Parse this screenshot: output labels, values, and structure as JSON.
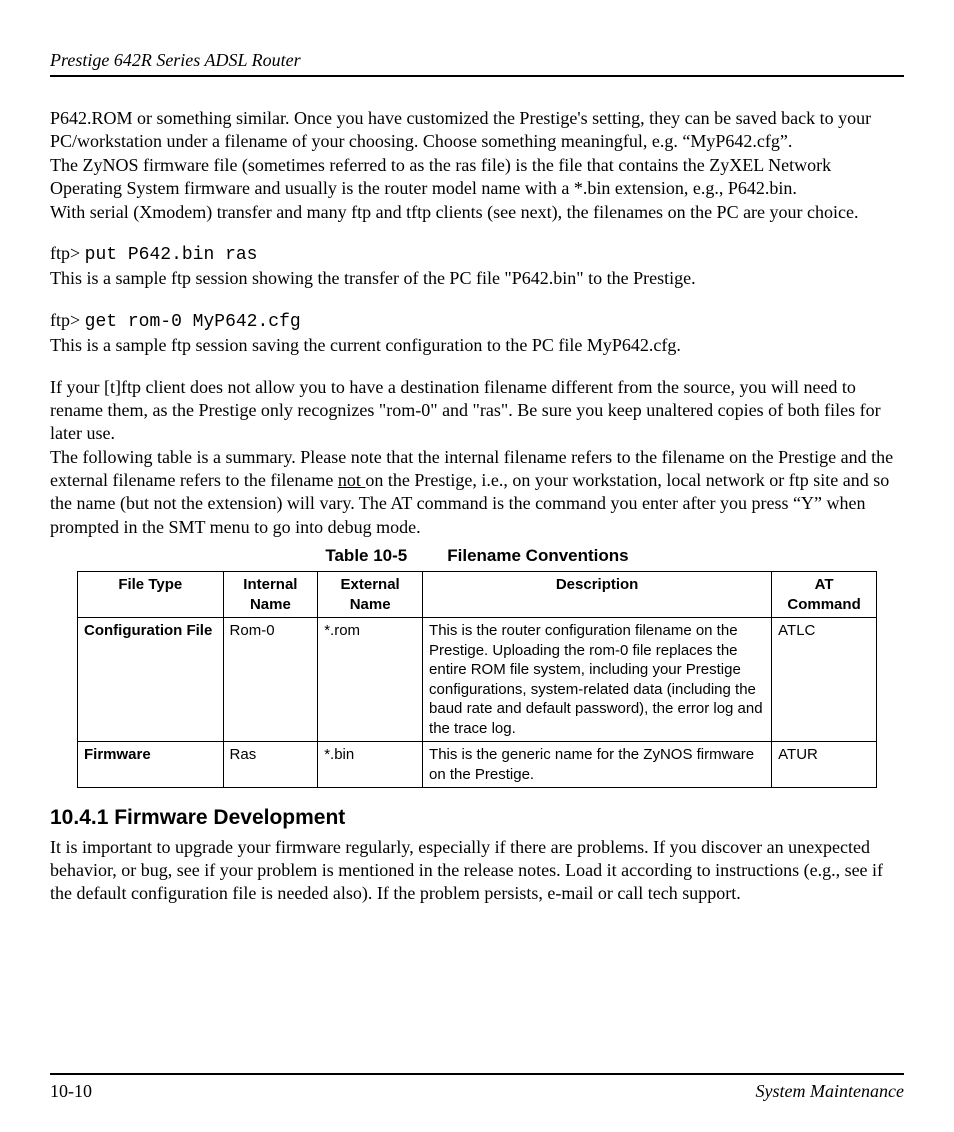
{
  "header": {
    "title": "Prestige 642R Series ADSL Router"
  },
  "para": {
    "p1a": "P642.ROM or something similar. Once you have customized the Prestige's setting, they can be saved back to your PC/workstation under a filename of your choosing. Choose something meaningful, e.g. “MyP642.cfg”.",
    "p1b": "The ZyNOS firmware file (sometimes referred to as the ras file) is the file that contains the ZyXEL Network Operating System firmware and usually is the router model name with a *.bin extension, e.g., P642.bin.",
    "p1c": "With serial (Xmodem) transfer and many ftp and tftp clients (see next), the filenames on the PC are your choice.",
    "ftp1_prompt": "ftp> ",
    "ftp1_cmd": "put P642.bin ras",
    "ftp1_desc": "This is a sample ftp session showing the transfer of the PC file \"P642.bin\" to the Prestige.",
    "ftp2_prompt": "ftp> ",
    "ftp2_cmd": "get rom-0 MyP642.cfg",
    "ftp2_desc": "This is a sample ftp session saving the current configuration to the PC file MyP642.cfg.",
    "p2": "If your [t]ftp client does not allow you to have a destination filename different from the source, you will need to rename them, as the Prestige only recognizes \"rom-0\" and \"ras\". Be sure you keep unaltered copies of both files for later use.",
    "p3a": "The following table is a summary. Please note that the internal filename refers to the filename on the Prestige and the external filename refers to the filename ",
    "p3_not": "not ",
    "p3b": "on the Prestige, i.e., on your workstation, local network or ftp site and so the name (but not the extension) will vary. The AT command is the command you enter after you press “Y” when prompted in the SMT menu to go into debug mode.",
    "section_title": "10.4.1 Firmware Development",
    "p4": "It is important to upgrade your firmware regularly, especially if there are problems. If you discover an unexpected behavior, or bug, see if your problem is mentioned in the release notes. Load it according to instructions (e.g., see if the default configuration file is needed also). If the problem persists, e-mail or call tech support."
  },
  "table": {
    "caption_num": "Table 10-5",
    "caption_title": "Filename Conventions",
    "headers": {
      "c1": "File Type",
      "c2": "Internal Name",
      "c3": "External Name",
      "c4": "Description",
      "c5": "AT Command"
    },
    "rows": [
      {
        "c1": "Configuration File",
        "c2": "Rom-0",
        "c3": "*.rom",
        "c4": "This is the router configuration filename on the Prestige.  Uploading the rom-0 file replaces the entire ROM file system, including your Prestige configurations, system-related data (including the baud rate and default password), the error log and the trace log.",
        "c5": "ATLC"
      },
      {
        "c1": "Firmware",
        "c2": "Ras",
        "c3": "*.bin",
        "c4": "This is the generic name for the ZyNOS firmware on the Prestige.",
        "c5": "ATUR"
      }
    ]
  },
  "footer": {
    "page": "10-10",
    "title": "System Maintenance"
  }
}
